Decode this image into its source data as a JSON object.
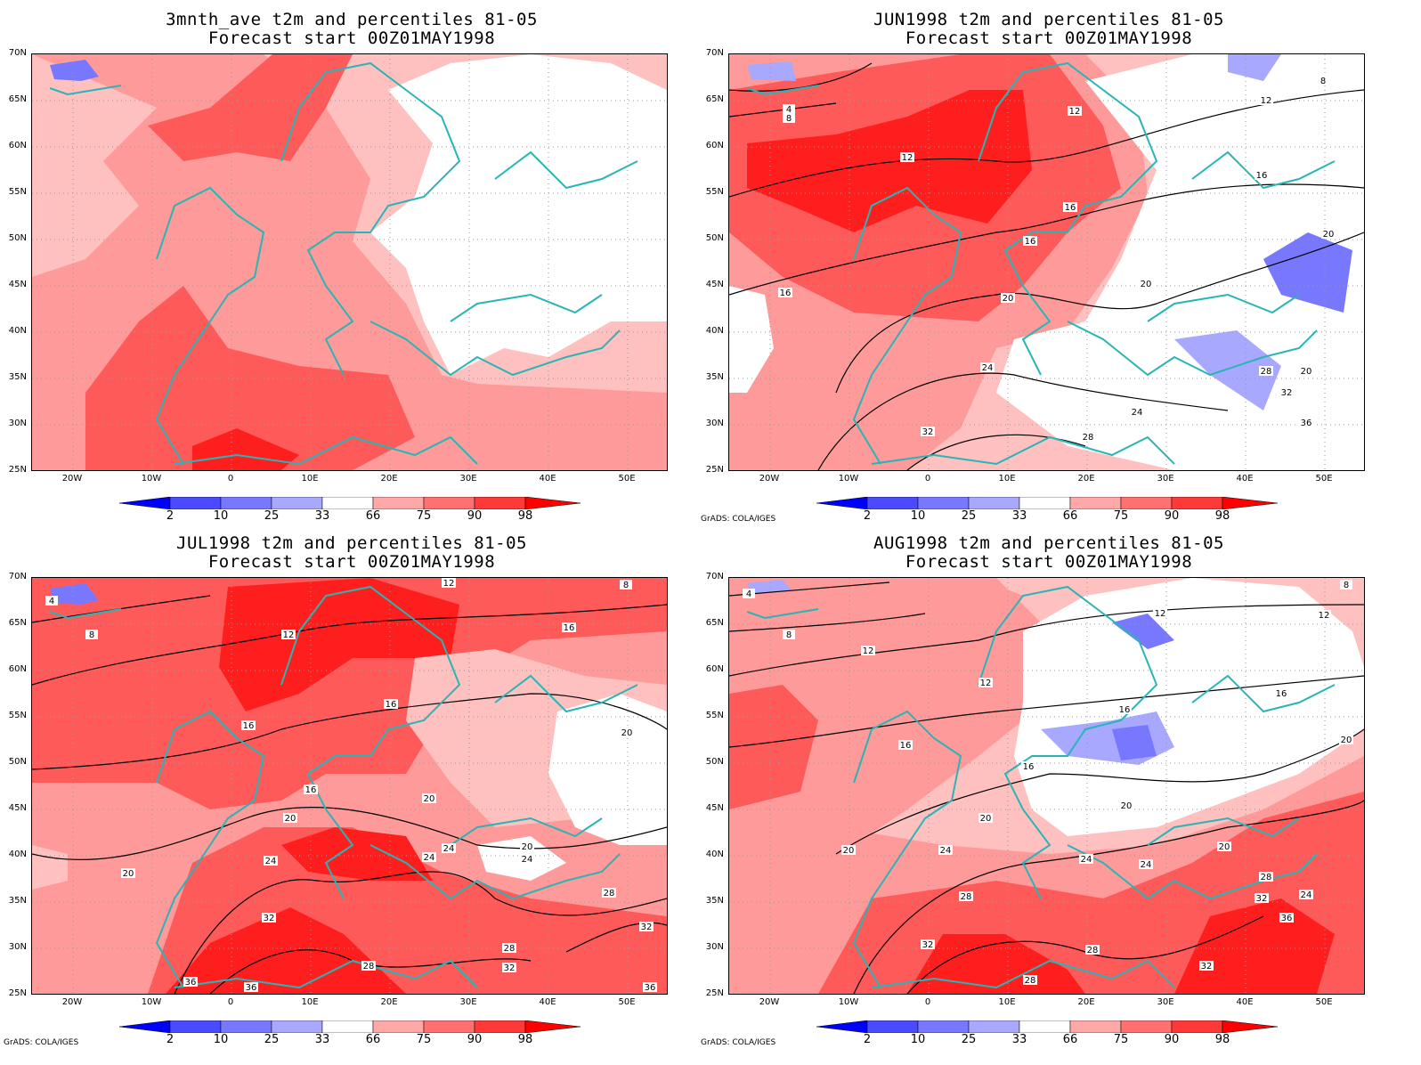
{
  "panels": [
    {
      "title_line1": "3mnth_ave t2m and percentiles 81-05",
      "title_line2": "Forecast start 00Z01MAY1998",
      "credit": "",
      "contours": []
    },
    {
      "title_line1": "JUN1998 t2m and percentiles 81-05",
      "title_line2": "Forecast start 00Z01MAY1998",
      "credit": "GrADS: COLA/IGES",
      "contours": [
        "4",
        "8",
        "8",
        "12",
        "12",
        "12",
        "16",
        "16",
        "16",
        "16",
        "20",
        "20",
        "20",
        "20",
        "24",
        "24",
        "28",
        "28",
        "32",
        "32",
        "36"
      ]
    },
    {
      "title_line1": "JUL1998 t2m and percentiles 81-05",
      "title_line2": "Forecast start 00Z01MAY1998",
      "credit": "GrADS: COLA/IGES",
      "contours": [
        "4",
        "8",
        "8",
        "12",
        "12",
        "16",
        "16",
        "16",
        "16",
        "20",
        "20",
        "20",
        "20",
        "20",
        "24",
        "24",
        "24",
        "24",
        "28",
        "28",
        "28",
        "32",
        "32",
        "32",
        "36",
        "36",
        "36"
      ]
    },
    {
      "title_line1": "AUG1998 t2m and percentiles 81-05",
      "title_line2": "Forecast start 00Z01MAY1998",
      "credit": "GrADS: COLA/IGES",
      "contours": [
        "4",
        "8",
        "8",
        "12",
        "12",
        "12",
        "12",
        "16",
        "16",
        "16",
        "16",
        "20",
        "20",
        "20",
        "20",
        "20",
        "24",
        "24",
        "24",
        "24",
        "28",
        "28",
        "28",
        "28",
        "32",
        "32",
        "32",
        "36"
      ]
    }
  ],
  "lat_labels": [
    "70N",
    "65N",
    "60N",
    "55N",
    "50N",
    "45N",
    "40N",
    "35N",
    "30N",
    "25N"
  ],
  "lon_labels": [
    "20W",
    "10W",
    "0",
    "10E",
    "20E",
    "30E",
    "40E",
    "50E"
  ],
  "colorbar": {
    "labels": [
      "2",
      "10",
      "25",
      "33",
      "66",
      "75",
      "90",
      "98"
    ],
    "colors": [
      "#0000ff",
      "#4a4aff",
      "#7878ff",
      "#a8a8ff",
      "#ffffff",
      "#ffa8a8",
      "#ff7070",
      "#ff3838",
      "#ff0000"
    ]
  },
  "colors": {
    "coastline": "#29b5b5",
    "contour": "#000000",
    "c66": "#ffc0c0",
    "c75": "#ff9a9a",
    "c90": "#ff5a5a",
    "c98": "#ff1e1e",
    "b33": "#a8a8ff",
    "b25": "#7878ff"
  }
}
